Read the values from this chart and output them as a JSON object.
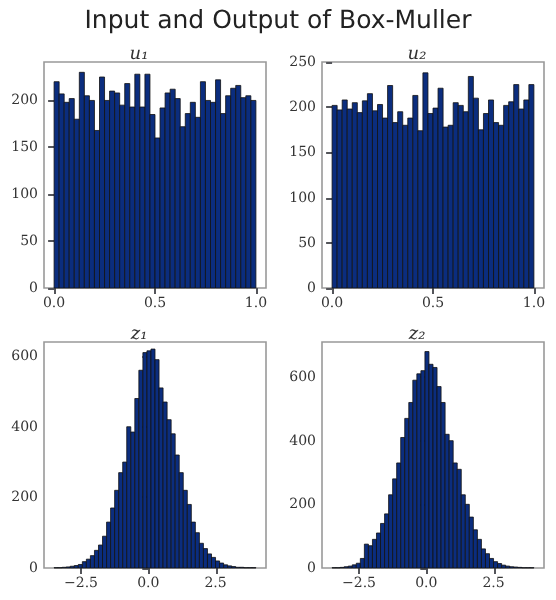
{
  "chart_data": [
    {
      "type": "histogram",
      "title": "u₁",
      "annotations": [
        "Input and Output of Box-Muller"
      ],
      "color": "#0b2d7e",
      "grid": false,
      "bins": [
        0,
        0.025,
        0.05,
        0.075,
        0.1,
        0.125,
        0.15,
        0.175,
        0.2,
        0.225,
        0.25,
        0.275,
        0.3,
        0.325,
        0.35,
        0.375,
        0.4,
        0.425,
        0.45,
        0.475,
        0.5,
        0.525,
        0.55,
        0.575,
        0.6,
        0.625,
        0.65,
        0.675,
        0.7,
        0.725,
        0.75,
        0.775,
        0.8,
        0.825,
        0.85,
        0.875,
        0.9,
        0.925,
        0.95,
        0.975,
        1
      ],
      "values": [
        220,
        207,
        198,
        202,
        180,
        230,
        205,
        200,
        168,
        225,
        200,
        210,
        208,
        195,
        218,
        193,
        228,
        193,
        228,
        185,
        160,
        192,
        208,
        212,
        202,
        172,
        186,
        198,
        182,
        220,
        200,
        198,
        222,
        186,
        205,
        213,
        216,
        203,
        205,
        200
      ],
      "xlim": [
        -0.05,
        1.05
      ],
      "xticks": [
        {
          "value": 0,
          "label": "0.0"
        },
        {
          "value": 0.5,
          "label": "0.5"
        },
        {
          "value": 1,
          "label": "1.0"
        }
      ],
      "ylim": [
        0,
        241
      ],
      "yticks": [
        0,
        50,
        100,
        150,
        200
      ]
    },
    {
      "type": "histogram",
      "title": "u₂",
      "color": "#0b2d7e",
      "grid": false,
      "bins": [
        0,
        0.025,
        0.05,
        0.075,
        0.1,
        0.125,
        0.15,
        0.175,
        0.2,
        0.225,
        0.25,
        0.275,
        0.3,
        0.325,
        0.35,
        0.375,
        0.4,
        0.425,
        0.45,
        0.475,
        0.5,
        0.525,
        0.55,
        0.575,
        0.6,
        0.625,
        0.65,
        0.675,
        0.7,
        0.725,
        0.75,
        0.775,
        0.8,
        0.825,
        0.85,
        0.875,
        0.9,
        0.925,
        0.95,
        0.975,
        1
      ],
      "values": [
        202,
        197,
        208,
        198,
        205,
        194,
        207,
        215,
        196,
        203,
        188,
        224,
        183,
        195,
        180,
        188,
        213,
        174,
        238,
        193,
        199,
        221,
        178,
        180,
        205,
        202,
        195,
        234,
        210,
        175,
        193,
        208,
        183,
        180,
        202,
        206,
        225,
        198,
        208,
        225
      ],
      "xlim": [
        -0.05,
        1.05
      ],
      "xticks": [
        {
          "value": 0,
          "label": "0.0"
        },
        {
          "value": 0.5,
          "label": "0.5"
        },
        {
          "value": 1,
          "label": "1.0"
        }
      ],
      "ylim": [
        0,
        250
      ],
      "yticks": [
        0,
        50,
        100,
        150,
        200,
        250
      ]
    },
    {
      "type": "histogram",
      "title": "z₁",
      "color": "#0b2d7e",
      "grid": false,
      "bins": [
        -3.5,
        -3.35,
        -3.2,
        -3.05,
        -2.9,
        -2.75,
        -2.6,
        -2.45,
        -2.3,
        -2.15,
        -2,
        -1.85,
        -1.7,
        -1.55,
        -1.4,
        -1.25,
        -1.1,
        -0.95,
        -0.8,
        -0.65,
        -0.5,
        -0.35,
        -0.2,
        -0.05,
        0.1,
        0.25,
        0.4,
        0.55,
        0.7,
        0.85,
        1,
        1.15,
        1.3,
        1.45,
        1.6,
        1.75,
        1.9,
        2.05,
        2.2,
        2.35,
        2.5,
        2.65,
        2.8,
        2.95,
        3.1,
        3.25,
        3.4,
        3.55,
        3.7,
        3.85,
        4
      ],
      "values": [
        1,
        1,
        2,
        3,
        5,
        7,
        10,
        18,
        25,
        35,
        50,
        65,
        90,
        130,
        170,
        220,
        270,
        300,
        400,
        385,
        480,
        560,
        610,
        615,
        620,
        590,
        510,
        470,
        420,
        380,
        320,
        270,
        220,
        180,
        130,
        100,
        70,
        55,
        40,
        30,
        20,
        14,
        9,
        6,
        4,
        2,
        2,
        1,
        1,
        1
      ],
      "xlim": [
        -3.875,
        4.375
      ],
      "xticks": [
        {
          "value": -2.5,
          "label": "−2.5"
        },
        {
          "value": 0,
          "label": "0.0"
        },
        {
          "value": 2.5,
          "label": "2.5"
        }
      ],
      "ylim": [
        0,
        640
      ],
      "yticks": [
        0,
        200,
        400,
        600
      ]
    },
    {
      "type": "histogram",
      "title": "z₂",
      "color": "#0b2d7e",
      "grid": false,
      "bins": [
        -3.5,
        -3.35,
        -3.2,
        -3.05,
        -2.9,
        -2.75,
        -2.6,
        -2.45,
        -2.3,
        -2.15,
        -2,
        -1.85,
        -1.7,
        -1.55,
        -1.4,
        -1.25,
        -1.1,
        -0.95,
        -0.8,
        -0.65,
        -0.5,
        -0.35,
        -0.2,
        -0.05,
        0.1,
        0.25,
        0.4,
        0.55,
        0.7,
        0.85,
        1,
        1.15,
        1.3,
        1.45,
        1.6,
        1.75,
        1.9,
        2.05,
        2.2,
        2.35,
        2.5,
        2.65,
        2.8,
        2.95,
        3.1,
        3.25,
        3.4,
        3.55,
        3.7,
        3.85,
        4
      ],
      "values": [
        1,
        1,
        2,
        4,
        6,
        10,
        15,
        30,
        75,
        70,
        90,
        110,
        140,
        170,
        230,
        280,
        330,
        410,
        470,
        520,
        590,
        610,
        620,
        680,
        640,
        630,
        570,
        520,
        420,
        400,
        330,
        310,
        230,
        200,
        160,
        120,
        90,
        60,
        45,
        30,
        20,
        14,
        9,
        6,
        4,
        3,
        2,
        1,
        1,
        1
      ],
      "xlim": [
        -3.875,
        4.375
      ],
      "xticks": [
        {
          "value": -2.5,
          "label": "−2.5"
        },
        {
          "value": 0,
          "label": "0.0"
        },
        {
          "value": 2.5,
          "label": "2.5"
        }
      ],
      "ylim": [
        0,
        710
      ],
      "yticks": [
        0,
        200,
        400,
        600
      ]
    }
  ]
}
